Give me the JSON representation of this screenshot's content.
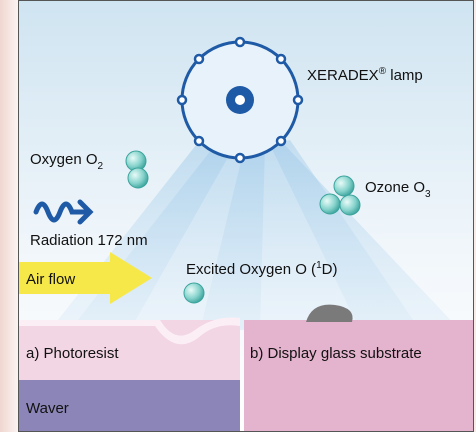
{
  "lamp": {
    "name": "XERADEX",
    "sup": "®",
    "rest": " lamp"
  },
  "oxygen": {
    "label": "Oxygen O",
    "sub": "2"
  },
  "ozone": {
    "label": "Ozone O",
    "sub": "3"
  },
  "radiation": "Radiation 172 nm",
  "excited": {
    "label": "Excited Oxygen O (",
    "sup": "1",
    "rest": "D)"
  },
  "airflow": "Air flow",
  "photoresist": "a) Photoresist",
  "substrate": "b) Display glass substrate",
  "waver": "Waver"
}
